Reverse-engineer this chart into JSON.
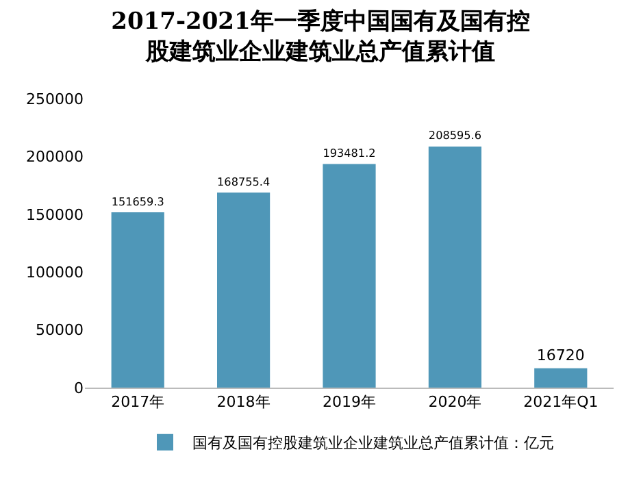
{
  "chart_data": {
    "type": "bar",
    "title": "2017-2021年一季度中国国有及国有控股建筑业企业建筑业总产值累计值",
    "categories": [
      "2017年",
      "2018年",
      "2019年",
      "2020年",
      "2021年Q1"
    ],
    "series": [
      {
        "name": "国有及国有控股建筑业企业建筑业总产值累计值：亿元",
        "color": "#4f97b8",
        "values": [
          151659.3,
          168755.4,
          193481.2,
          208595.6,
          16720
        ]
      }
    ],
    "ylim": [
      0,
      250000
    ],
    "yticks": [
      0,
      50000,
      100000,
      150000,
      200000,
      250000
    ],
    "grid": false,
    "legend": "bottom",
    "data_labels": true
  }
}
